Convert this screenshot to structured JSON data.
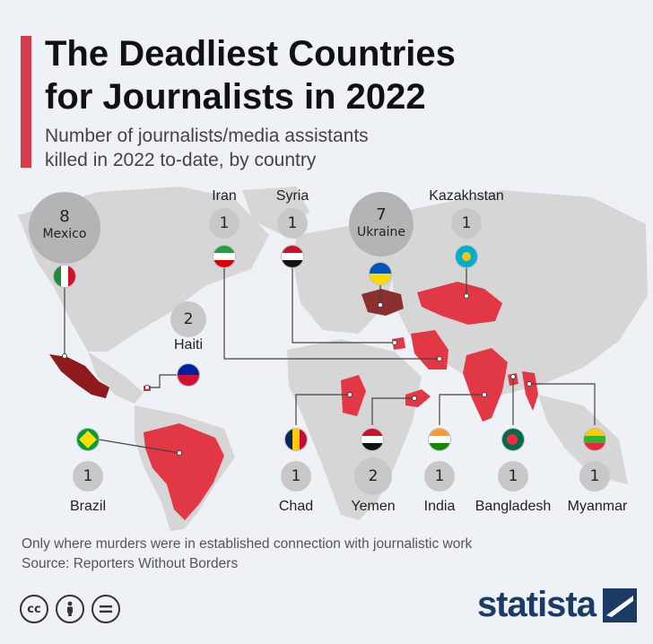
{
  "title": "The Deadliest Countries\nfor Journalists in 2022",
  "subtitle": "Number of journalists/media assistants\nkilled in 2022 to-date, by country",
  "countries": [
    {
      "name": "Mexico",
      "killed": 8
    },
    {
      "name": "Ukraine",
      "killed": 7
    },
    {
      "name": "Haiti",
      "killed": 2
    },
    {
      "name": "Yemen",
      "killed": 2
    },
    {
      "name": "Iran",
      "killed": 1
    },
    {
      "name": "Syria",
      "killed": 1
    },
    {
      "name": "Kazakhstan",
      "killed": 1
    },
    {
      "name": "Brazil",
      "killed": 1
    },
    {
      "name": "Chad",
      "killed": 1
    },
    {
      "name": "India",
      "killed": 1
    },
    {
      "name": "Bangladesh",
      "killed": 1
    },
    {
      "name": "Myanmar",
      "killed": 1
    }
  ],
  "footnote": "Only where murders were in established connection with journalistic work\nSource: Reporters Without Borders",
  "license_icons": [
    "creative-commons-icon",
    "attribution-icon",
    "no-derivatives-icon"
  ],
  "brand": "statista",
  "colors": {
    "accent": "#d43c4b",
    "highlight": "#e23744",
    "mexico": "#8e1a1e",
    "ukraine": "#8b2f2f",
    "land": "#d6d6d6",
    "brand": "#1b3b66"
  }
}
